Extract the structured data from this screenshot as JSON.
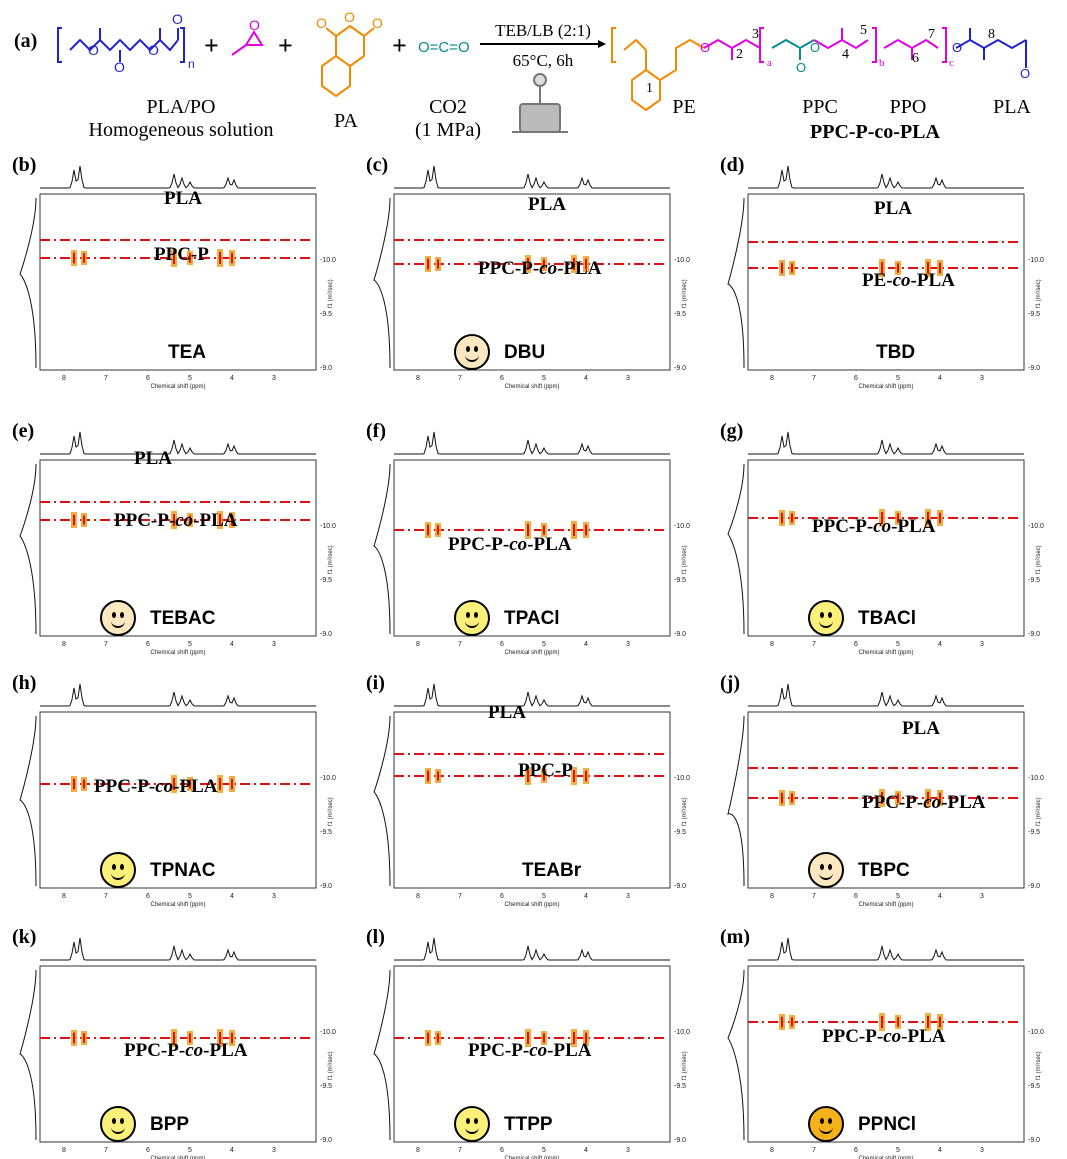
{
  "figure_label": "(a)",
  "scheme": {
    "reagent_labels": [
      "PLA/PO",
      "Homogeneous solution",
      "PA",
      "CO2",
      "(1 MPa)"
    ],
    "plus": "+",
    "subscript_n": "n",
    "arrow_top": "TEB/LB (2:1)",
    "arrow_bottom": "65°C, 6h",
    "product_segments": [
      "PE",
      "PPC",
      "PPO",
      "PLA"
    ],
    "product_name": "PPC-P-co-PLA",
    "atom_numbers": [
      "1",
      "2",
      "3",
      "4",
      "5",
      "6",
      "7",
      "8"
    ],
    "repeat_letters": [
      "a",
      "b",
      "c"
    ],
    "colors": {
      "pla": "#2222cc",
      "po": "#e000e0",
      "pa": "#f08a00",
      "co2": "#0a8a8a",
      "guide": "#e01010"
    }
  },
  "shared_axis": {
    "xlabel": "Chemical shift (ppm)",
    "ylabel": "f1 (m²/sec)",
    "x_ticks": [
      "8",
      "7",
      "6",
      "5",
      "4",
      "3"
    ],
    "y_ticks": [
      "-10.0",
      "-9.5",
      "-9.0"
    ]
  },
  "panels": [
    {
      "letter": "(b)",
      "catalyst": "TEA",
      "labels": [
        "PLA",
        "PPC-P"
      ],
      "smiley": null
    },
    {
      "letter": "(c)",
      "catalyst": "DBU",
      "labels": [
        "PLA",
        "PPC-P-co-PLA"
      ],
      "smiley": "#fbe7c0"
    },
    {
      "letter": "(d)",
      "catalyst": "TBD",
      "labels": [
        "PLA",
        "PE-co-PLA"
      ],
      "smiley": null
    },
    {
      "letter": "(e)",
      "catalyst": "TEBAC",
      "labels": [
        "PLA",
        "PPC-P-co-PLA"
      ],
      "smiley": "#fbe7c0"
    },
    {
      "letter": "(f)",
      "catalyst": "TPACl",
      "labels": [
        "PPC-P-co-PLA"
      ],
      "smiley": "#fbf07a"
    },
    {
      "letter": "(g)",
      "catalyst": "TBACl",
      "labels": [
        "PPC-P-co-PLA"
      ],
      "smiley": "#fbf07a"
    },
    {
      "letter": "(h)",
      "catalyst": "TPNAC",
      "labels": [
        "PPC-P-co-PLA"
      ],
      "smiley": "#fbf07a"
    },
    {
      "letter": "(i)",
      "catalyst": "TEABr",
      "labels": [
        "PLA",
        "PPC-P"
      ],
      "smiley": null
    },
    {
      "letter": "(j)",
      "catalyst": "TBPC",
      "labels": [
        "PLA",
        "PPC-P-co-PLA"
      ],
      "smiley": "#fbe7c0"
    },
    {
      "letter": "(k)",
      "catalyst": "BPP",
      "labels": [
        "PPC-P-co-PLA"
      ],
      "smiley": "#fbf07a"
    },
    {
      "letter": "(l)",
      "catalyst": "TTPP",
      "labels": [
        "PPC-P-co-PLA"
      ],
      "smiley": "#fbf07a"
    },
    {
      "letter": "(m)",
      "catalyst": "PPNCl",
      "labels": [
        "PPC-P-co-PLA"
      ],
      "smiley": "#f5b21a"
    }
  ]
}
